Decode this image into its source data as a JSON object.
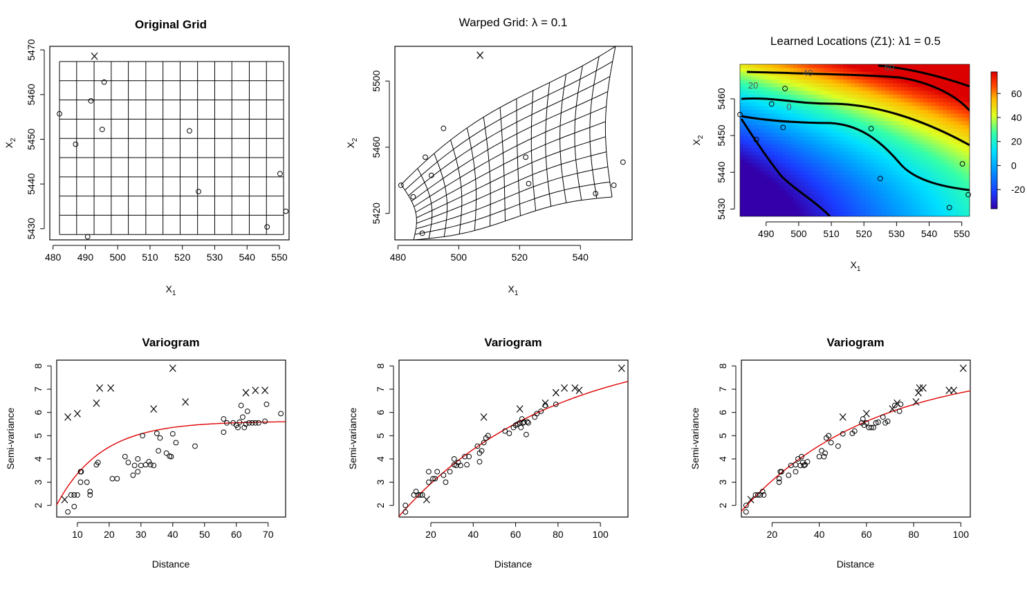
{
  "figure": {
    "panels": {
      "original_grid": {
        "title": "Original Grid",
        "xlabel": "X1",
        "ylabel": "X2",
        "xticks": [
          480,
          490,
          500,
          510,
          520,
          530,
          540,
          550
        ],
        "yticks": [
          5430,
          5440,
          5450,
          5460,
          5470
        ]
      },
      "warped_grid": {
        "title": "Warped Grid: λ = 0.1",
        "xlabel": "X1",
        "ylabel": "X2",
        "xticks": [
          480,
          500,
          520,
          540
        ],
        "yticks": [
          5420,
          5460,
          5500
        ]
      },
      "learned_locations": {
        "title": "Learned Locations (Z1): λ1 = 0.5",
        "xlabel": "X1",
        "ylabel": "X2",
        "xticks": [
          490,
          500,
          510,
          520,
          530,
          540,
          550
        ],
        "yticks": [
          5430,
          5440,
          5450,
          5460
        ],
        "colorbar_ticks": [
          -20,
          0,
          20,
          40,
          60
        ],
        "contour_labels": [
          "0",
          "20",
          "40",
          "60"
        ]
      },
      "variogram_1": {
        "title": "Variogram",
        "xlabel": "Distance",
        "ylabel": "Semi-variance",
        "xticks": [
          10,
          20,
          30,
          40,
          50,
          60,
          70
        ],
        "yticks": [
          2,
          3,
          4,
          5,
          6,
          7,
          8
        ]
      },
      "variogram_2": {
        "title": "Variogram",
        "xlabel": "Distance",
        "ylabel": "Semi-variance",
        "xticks": [
          20,
          40,
          60,
          80,
          100
        ],
        "yticks": [
          2,
          3,
          4,
          5,
          6,
          7,
          8
        ]
      },
      "variogram_3": {
        "title": "Variogram",
        "xlabel": "Distance",
        "ylabel": "Semi-variance",
        "xticks": [
          20,
          40,
          60,
          80,
          100
        ],
        "yticks": [
          2,
          3,
          4,
          5,
          6,
          7,
          8
        ]
      }
    }
  },
  "chart_data": [
    {
      "type": "scatter",
      "panel": "original_grid",
      "title": "Original Grid",
      "xlabel": "X1",
      "ylabel": "X2",
      "xlim": [
        479,
        553
      ],
      "ylim": [
        5427.5,
        5470.8
      ],
      "grid_x": [
        482,
        487.3,
        492.7,
        498,
        503.3,
        508.7,
        514,
        519.3,
        524.7,
        530,
        535.3,
        540.7,
        546,
        551.3
      ],
      "grid_y": [
        5428.7,
        5433,
        5437.3,
        5441.6,
        5445.9,
        5450.2,
        5454.5,
        5458.8,
        5463.1,
        5467.4
      ],
      "points": [
        {
          "x": 482,
          "y": 5455.7,
          "m": "o"
        },
        {
          "x": 487,
          "y": 5448.9,
          "m": "o"
        },
        {
          "x": 490.7,
          "y": 5428.2,
          "m": "o"
        },
        {
          "x": 491.7,
          "y": 5458.6,
          "m": "o"
        },
        {
          "x": 495.2,
          "y": 5452.2,
          "m": "o"
        },
        {
          "x": 495.8,
          "y": 5462.8,
          "m": "o"
        },
        {
          "x": 492.8,
          "y": 5468.6,
          "m": "X"
        },
        {
          "x": 522.2,
          "y": 5451.9,
          "m": "o"
        },
        {
          "x": 525,
          "y": 5438.3,
          "m": "o"
        },
        {
          "x": 546.2,
          "y": 5430.4,
          "m": "o"
        },
        {
          "x": 550.2,
          "y": 5442.3,
          "m": "o"
        },
        {
          "x": 552,
          "y": 5433.9,
          "m": "o"
        }
      ]
    },
    {
      "type": "scatter",
      "panel": "warped_grid",
      "title": "Warped Grid: λ = 0.1",
      "xlabel": "X1",
      "ylabel": "X2",
      "xlim": [
        479,
        557
      ],
      "ylim": [
        5404,
        5521
      ],
      "points": [
        {
          "x": 507,
          "y": 5515.6,
          "m": "X"
        },
        {
          "x": 495,
          "y": 5471.4,
          "m": "o"
        },
        {
          "x": 489,
          "y": 5454,
          "m": "o"
        },
        {
          "x": 491,
          "y": 5443,
          "m": "o"
        },
        {
          "x": 481,
          "y": 5437,
          "m": "o"
        },
        {
          "x": 485,
          "y": 5430,
          "m": "o"
        },
        {
          "x": 488,
          "y": 5408,
          "m": "o"
        },
        {
          "x": 522,
          "y": 5454,
          "m": "o"
        },
        {
          "x": 523,
          "y": 5438,
          "m": "o"
        },
        {
          "x": 545,
          "y": 5432,
          "m": "o"
        },
        {
          "x": 551,
          "y": 5437,
          "m": "o"
        },
        {
          "x": 554,
          "y": 5451,
          "m": "o"
        }
      ]
    },
    {
      "type": "heatmap",
      "panel": "learned_locations",
      "title": "Learned Locations (Z1): λ1 = 0.5",
      "xlabel": "X1",
      "ylabel": "X2",
      "xlim": [
        482,
        552.4
      ],
      "ylim": [
        5428,
        5469.4
      ],
      "zlim": [
        -36,
        78
      ],
      "colorbar_ticks": [
        -20,
        0,
        20,
        40,
        60
      ],
      "points": [
        {
          "x": 482,
          "y": 5455.7,
          "m": "o"
        },
        {
          "x": 487,
          "y": 5448.9,
          "m": "o"
        },
        {
          "x": 491.7,
          "y": 5458.6,
          "m": "o"
        },
        {
          "x": 495.2,
          "y": 5452.2,
          "m": "o"
        },
        {
          "x": 495.8,
          "y": 5462.8,
          "m": "o"
        },
        {
          "x": 522.2,
          "y": 5451.9,
          "m": "o"
        },
        {
          "x": 525,
          "y": 5438.3,
          "m": "o"
        },
        {
          "x": 546.2,
          "y": 5430.4,
          "m": "o"
        },
        {
          "x": 550.2,
          "y": 5442.3,
          "m": "o"
        },
        {
          "x": 552,
          "y": 5433.9,
          "m": "o"
        }
      ]
    },
    {
      "type": "scatter",
      "panel": "variogram_1",
      "title": "Variogram",
      "xlabel": "Distance",
      "ylabel": "Semi-variance",
      "xlim": [
        3.5,
        75.5
      ],
      "ylim": [
        1.5,
        8.25
      ],
      "fit": {
        "nugget": 1.0,
        "sill": 5.62,
        "range": 14
      },
      "points": [
        [
          7,
          1.72,
          "o"
        ],
        [
          8,
          2.45,
          "o"
        ],
        [
          9,
          2.45,
          "o"
        ],
        [
          9,
          1.95,
          "o"
        ],
        [
          10,
          2.45,
          "o"
        ],
        [
          11,
          3.0,
          "o"
        ],
        [
          11,
          3.45,
          "o"
        ],
        [
          11.2,
          3.45,
          "o"
        ],
        [
          13,
          3.0,
          "o"
        ],
        [
          14,
          2.45,
          "o"
        ],
        [
          14,
          2.6,
          "o"
        ],
        [
          16,
          3.75,
          "o"
        ],
        [
          16.5,
          3.85,
          "o"
        ],
        [
          21,
          3.15,
          "o"
        ],
        [
          22.5,
          3.15,
          "o"
        ],
        [
          25,
          4.1,
          "o"
        ],
        [
          26,
          3.85,
          "o"
        ],
        [
          27.5,
          3.3,
          "o"
        ],
        [
          28,
          3.72,
          "o"
        ],
        [
          29,
          3.45,
          "o"
        ],
        [
          29,
          4.0,
          "o"
        ],
        [
          30,
          3.72,
          "o"
        ],
        [
          30.5,
          5.0,
          "o"
        ],
        [
          31.5,
          3.75,
          "o"
        ],
        [
          32.5,
          3.88,
          "o"
        ],
        [
          33,
          3.75,
          "o"
        ],
        [
          34,
          3.72,
          "o"
        ],
        [
          35,
          5.1,
          "o"
        ],
        [
          35.5,
          4.35,
          "o"
        ],
        [
          36,
          4.9,
          "o"
        ],
        [
          38,
          4.25,
          "o"
        ],
        [
          39,
          4.12,
          "o"
        ],
        [
          39.5,
          4.1,
          "o"
        ],
        [
          40,
          5.08,
          "o"
        ],
        [
          41,
          4.7,
          "o"
        ],
        [
          47,
          4.55,
          "o"
        ],
        [
          56,
          5.72,
          "o"
        ],
        [
          56,
          5.15,
          "o"
        ],
        [
          57,
          5.55,
          "o"
        ],
        [
          59,
          5.55,
          "o"
        ],
        [
          60,
          5.45,
          "o"
        ],
        [
          60.5,
          5.35,
          "o"
        ],
        [
          61,
          5.58,
          "o"
        ],
        [
          61.5,
          6.3,
          "o"
        ],
        [
          62,
          5.8,
          "o"
        ],
        [
          62.5,
          5.35,
          "o"
        ],
        [
          63,
          5.5,
          "o"
        ],
        [
          63.5,
          6.05,
          "o"
        ],
        [
          64,
          5.55,
          "o"
        ],
        [
          65,
          5.55,
          "o"
        ],
        [
          66,
          5.55,
          "o"
        ],
        [
          67,
          5.55,
          "o"
        ],
        [
          69,
          5.62,
          "o"
        ],
        [
          69.5,
          6.35,
          "o"
        ],
        [
          74,
          5.95,
          "o"
        ],
        [
          6,
          2.25,
          "X"
        ],
        [
          7,
          5.8,
          "X"
        ],
        [
          10,
          5.95,
          "X"
        ],
        [
          16,
          6.4,
          "X"
        ],
        [
          17,
          7.05,
          "X"
        ],
        [
          20.5,
          7.05,
          "X"
        ],
        [
          34,
          6.15,
          "X"
        ],
        [
          40,
          7.9,
          "X"
        ],
        [
          44,
          6.45,
          "X"
        ],
        [
          63,
          6.85,
          "X"
        ],
        [
          66,
          6.95,
          "X"
        ],
        [
          69,
          6.95,
          "X"
        ]
      ]
    },
    {
      "type": "scatter",
      "panel": "variogram_2",
      "title": "Variogram",
      "xlabel": "Distance",
      "ylabel": "Semi-variance",
      "xlim": [
        5,
        113
      ],
      "ylim": [
        1.5,
        8.25
      ],
      "fit": {
        "nugget": 1.0,
        "sill": 9.0,
        "range": 72
      },
      "points": [
        [
          8,
          2.0,
          "o"
        ],
        [
          8,
          1.72,
          "o"
        ],
        [
          12,
          2.45,
          "o"
        ],
        [
          13,
          2.6,
          "o"
        ],
        [
          14,
          2.45,
          "o"
        ],
        [
          15,
          2.45,
          "o"
        ],
        [
          16,
          2.45,
          "o"
        ],
        [
          19,
          3.0,
          "o"
        ],
        [
          19,
          3.45,
          "o"
        ],
        [
          21,
          3.15,
          "o"
        ],
        [
          22,
          3.15,
          "o"
        ],
        [
          23,
          3.45,
          "o"
        ],
        [
          26,
          3.3,
          "o"
        ],
        [
          27,
          3.0,
          "o"
        ],
        [
          29,
          3.45,
          "o"
        ],
        [
          31,
          3.75,
          "o"
        ],
        [
          31,
          4.0,
          "o"
        ],
        [
          32,
          3.72,
          "o"
        ],
        [
          33,
          3.85,
          "o"
        ],
        [
          34,
          3.72,
          "o"
        ],
        [
          36,
          4.1,
          "o"
        ],
        [
          37,
          3.75,
          "o"
        ],
        [
          38,
          4.1,
          "o"
        ],
        [
          42,
          4.55,
          "o"
        ],
        [
          43,
          3.88,
          "o"
        ],
        [
          43,
          4.25,
          "o"
        ],
        [
          44,
          4.35,
          "o"
        ],
        [
          45,
          4.7,
          "o"
        ],
        [
          46,
          4.9,
          "o"
        ],
        [
          47,
          5.0,
          "o"
        ],
        [
          55,
          5.2,
          "o"
        ],
        [
          57,
          5.1,
          "o"
        ],
        [
          59,
          5.35,
          "o"
        ],
        [
          60,
          5.45,
          "o"
        ],
        [
          61,
          5.5,
          "o"
        ],
        [
          62,
          5.55,
          "o"
        ],
        [
          62.5,
          5.35,
          "o"
        ],
        [
          63,
          5.72,
          "o"
        ],
        [
          63.5,
          5.55,
          "o"
        ],
        [
          64,
          5.58,
          "o"
        ],
        [
          65,
          5.05,
          "o"
        ],
        [
          65.5,
          5.6,
          "o"
        ],
        [
          66,
          5.55,
          "o"
        ],
        [
          69,
          5.8,
          "o"
        ],
        [
          70,
          5.95,
          "o"
        ],
        [
          72,
          6.05,
          "o"
        ],
        [
          74,
          6.3,
          "o"
        ],
        [
          79,
          6.35,
          "o"
        ],
        [
          18,
          2.25,
          "X"
        ],
        [
          45,
          5.8,
          "X"
        ],
        [
          62,
          6.15,
          "X"
        ],
        [
          74,
          6.4,
          "X"
        ],
        [
          79,
          6.85,
          "X"
        ],
        [
          83,
          7.05,
          "X"
        ],
        [
          88,
          7.05,
          "X"
        ],
        [
          90,
          6.95,
          "X"
        ],
        [
          110,
          7.9,
          "X"
        ]
      ]
    },
    {
      "type": "scatter",
      "panel": "variogram_3",
      "title": "Variogram",
      "xlabel": "Distance",
      "ylabel": "Semi-variance",
      "xlim": [
        7,
        104
      ],
      "ylim": [
        1.5,
        8.25
      ],
      "fit": {
        "nugget": 0.9,
        "sill": 8.0,
        "range": 55
      },
      "points": [
        [
          9,
          2.0,
          "o"
        ],
        [
          9,
          1.72,
          "o"
        ],
        [
          13,
          2.45,
          "o"
        ],
        [
          14,
          2.45,
          "o"
        ],
        [
          15,
          2.45,
          "o"
        ],
        [
          16,
          2.6,
          "o"
        ],
        [
          16.5,
          2.45,
          "o"
        ],
        [
          23,
          3.0,
          "o"
        ],
        [
          23,
          3.15,
          "o"
        ],
        [
          23.5,
          3.45,
          "o"
        ],
        [
          24,
          3.45,
          "o"
        ],
        [
          27,
          3.3,
          "o"
        ],
        [
          28,
          3.72,
          "o"
        ],
        [
          30,
          3.45,
          "o"
        ],
        [
          30,
          3.75,
          "o"
        ],
        [
          31,
          4.0,
          "o"
        ],
        [
          32,
          3.72,
          "o"
        ],
        [
          32.5,
          4.1,
          "o"
        ],
        [
          33,
          3.85,
          "o"
        ],
        [
          33.5,
          3.72,
          "o"
        ],
        [
          34,
          3.75,
          "o"
        ],
        [
          35,
          3.88,
          "o"
        ],
        [
          40,
          4.1,
          "o"
        ],
        [
          41,
          4.35,
          "o"
        ],
        [
          42,
          4.1,
          "o"
        ],
        [
          42.5,
          4.25,
          "o"
        ],
        [
          43,
          4.9,
          "o"
        ],
        [
          44,
          5.0,
          "o"
        ],
        [
          45,
          4.7,
          "o"
        ],
        [
          48,
          4.55,
          "o"
        ],
        [
          50,
          5.08,
          "o"
        ],
        [
          54,
          5.1,
          "o"
        ],
        [
          55,
          5.2,
          "o"
        ],
        [
          58,
          5.55,
          "o"
        ],
        [
          58.5,
          5.72,
          "o"
        ],
        [
          59,
          5.45,
          "o"
        ],
        [
          60,
          5.55,
          "o"
        ],
        [
          61,
          5.35,
          "o"
        ],
        [
          62,
          5.35,
          "o"
        ],
        [
          63,
          5.35,
          "o"
        ],
        [
          64,
          5.55,
          "o"
        ],
        [
          65,
          5.58,
          "o"
        ],
        [
          67,
          5.8,
          "o"
        ],
        [
          68,
          5.55,
          "o"
        ],
        [
          69,
          5.62,
          "o"
        ],
        [
          72,
          6.3,
          "o"
        ],
        [
          74,
          6.05,
          "o"
        ],
        [
          74.5,
          6.35,
          "o"
        ],
        [
          11,
          2.25,
          "X"
        ],
        [
          50,
          5.8,
          "X"
        ],
        [
          60,
          5.95,
          "X"
        ],
        [
          71,
          6.15,
          "X"
        ],
        [
          73,
          6.4,
          "X"
        ],
        [
          81,
          6.45,
          "X"
        ],
        [
          82,
          6.85,
          "X"
        ],
        [
          82.5,
          7.05,
          "X"
        ],
        [
          84,
          7.05,
          "X"
        ],
        [
          95,
          6.95,
          "X"
        ],
        [
          97,
          6.95,
          "X"
        ],
        [
          101,
          7.9,
          "X"
        ]
      ]
    }
  ]
}
